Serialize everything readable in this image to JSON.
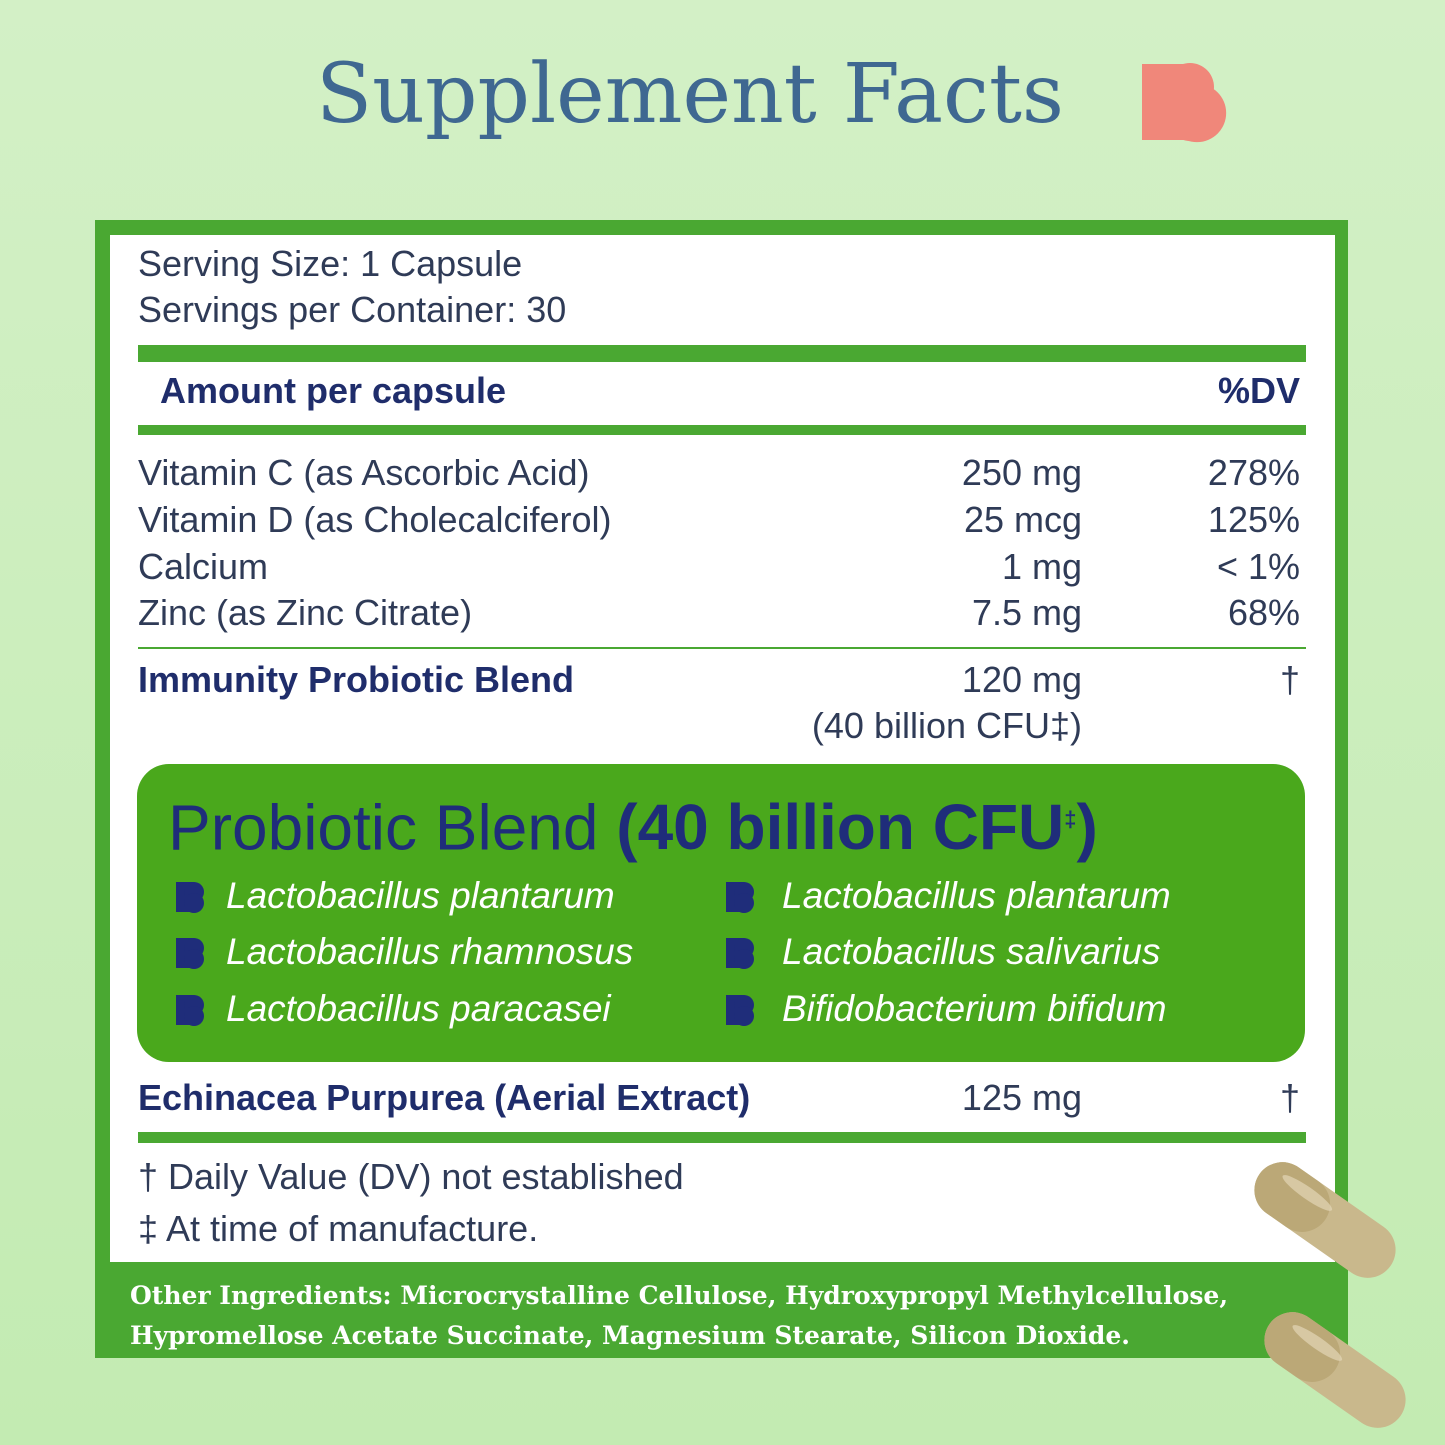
{
  "title": "Supplement Facts",
  "serving": {
    "size": "Serving Size: 1 Capsule",
    "per_container": "Servings per Container: 30"
  },
  "header": {
    "amount": "Amount per capsule",
    "dv": "%DV"
  },
  "rows": [
    {
      "name": "Vitamin C (as Ascorbic Acid)",
      "amount": "250 mg",
      "dv": "278%"
    },
    {
      "name": "Vitamin D (as Cholecalciferol)",
      "amount": "25 mcg",
      "dv": "125%"
    },
    {
      "name": "Calcium",
      "amount": "1 mg",
      "dv": "< 1%"
    },
    {
      "name": "Zinc (as Zinc Citrate)",
      "amount": "7.5 mg",
      "dv": "68%"
    }
  ],
  "blend": {
    "name": "Immunity Probiotic Blend",
    "amount": "120 mg",
    "cfu": "(40 billion CFU‡)",
    "dv": "†"
  },
  "probiotic": {
    "name": "Probiotic Blend",
    "count": "(40 billion CFU",
    "mark": "‡",
    "close": ")",
    "strains": [
      "Lactobacillus plantarum",
      "Lactobacillus plantarum",
      "Lactobacillus rhamnosus",
      "Lactobacillus salivarius",
      "Lactobacillus paracasei",
      "Bifidobacterium bifidum"
    ]
  },
  "echinacea": {
    "name": "Echinacea Purpurea (Aerial Extract)",
    "amount": "125 mg",
    "dv": "†"
  },
  "footnotes": [
    "† Daily Value (DV) not established",
    "‡ At time of manufacture."
  ],
  "other_ingredients": [
    "Other Ingredients: Microcrystalline Cellulose, Hydroxypropyl Methylcellulose,",
    "Hypromellose Acetate Succinate, Magnesium Stearate, Silicon Dioxide."
  ]
}
